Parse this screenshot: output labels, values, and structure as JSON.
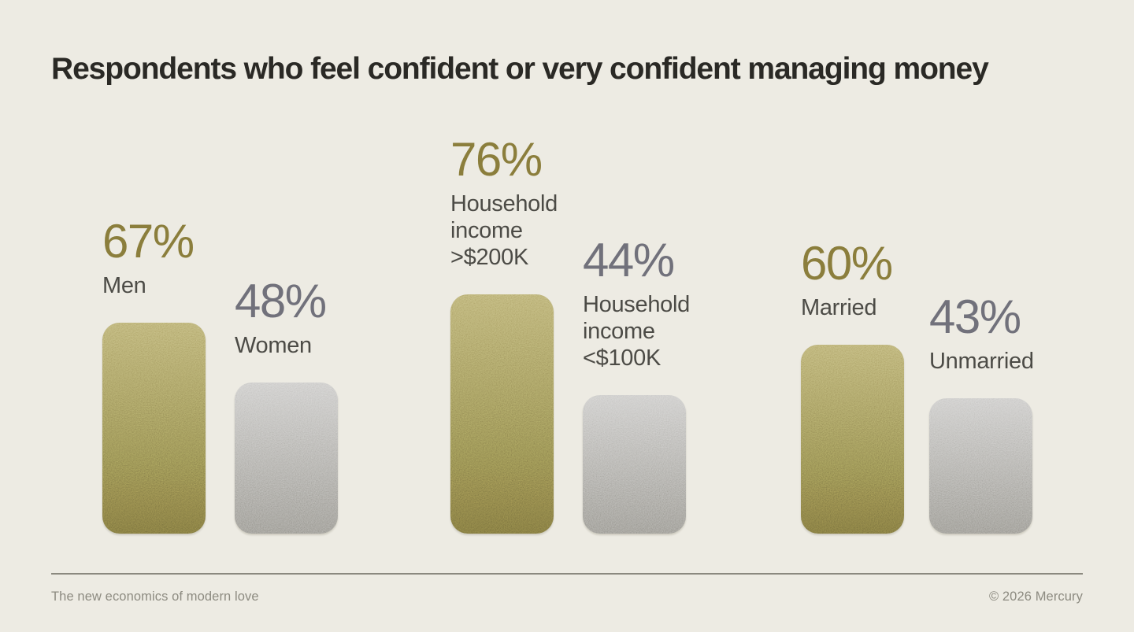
{
  "title": "Respondents who feel confident or very confident managing money",
  "footer": {
    "left": "The new economics of modern love",
    "right": "© 2026 Mercury"
  },
  "colors": {
    "background": "#edebe3",
    "title_text": "#2a2925",
    "label_text": "#4c4b46",
    "gold_text": "#8b7e3c",
    "silver_text": "#71717b",
    "gold_bar_top": "#b2a76b",
    "gold_bar_bottom": "#756d3a",
    "silver_bar_top": "#c8c7c5",
    "silver_bar_bottom": "#93918a",
    "footer_text": "#8d8b81",
    "divider": "#8b897f"
  },
  "chart_data": {
    "type": "bar",
    "title": "Respondents who feel confident or very confident managing money",
    "unit": "%",
    "ylim": [
      0,
      100
    ],
    "grid": false,
    "legend_position": "none",
    "value_labels_shown": true,
    "groups": [
      {
        "bars": [
          {
            "label": "Men",
            "value": 67,
            "variant": "gold"
          },
          {
            "label": "Women",
            "value": 48,
            "variant": "silver"
          }
        ]
      },
      {
        "bars": [
          {
            "label": "Household income >$200K",
            "value": 76,
            "variant": "gold"
          },
          {
            "label": "Household income <$100K",
            "value": 44,
            "variant": "silver"
          }
        ]
      },
      {
        "bars": [
          {
            "label": "Married",
            "value": 60,
            "variant": "gold"
          },
          {
            "label": "Unmarried",
            "value": 43,
            "variant": "silver"
          }
        ]
      }
    ]
  }
}
